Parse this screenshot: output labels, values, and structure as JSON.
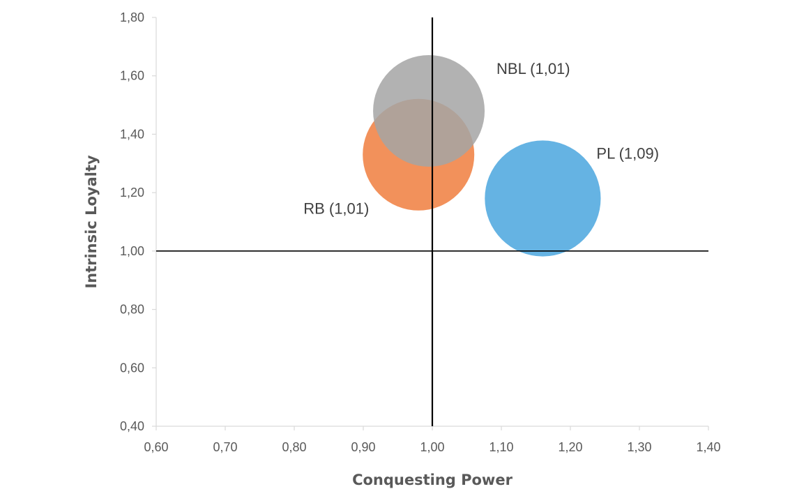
{
  "chart_data": {
    "type": "scatter",
    "variant": "bubble",
    "title": "",
    "xlabel": "Conquesting Power",
    "ylabel": "Intrinsic Loyalty",
    "xlim": [
      0.6,
      1.4
    ],
    "ylim": [
      0.4,
      1.8
    ],
    "x_ticks": [
      "0,60",
      "0,70",
      "0,80",
      "0,90",
      "1,00",
      "1,10",
      "1,20",
      "1,30",
      "1,40"
    ],
    "y_ticks": [
      "0,40",
      "0,60",
      "0,80",
      "1,00",
      "1,20",
      "1,40",
      "1,60",
      "1,80"
    ],
    "reference_lines": {
      "x": 1.0,
      "y": 1.0
    },
    "grid": false,
    "legend": "none",
    "series": [
      {
        "name": "RB",
        "label": "RB (1,01)",
        "x": 0.98,
        "y": 1.33,
        "size": 1.01,
        "color": "#f07e3e"
      },
      {
        "name": "NBL",
        "label": "NBL (1,01)",
        "x": 0.995,
        "y": 1.48,
        "size": 1.01,
        "color": "#a5a5a5"
      },
      {
        "name": "PL",
        "label": "PL (1,09)",
        "x": 1.16,
        "y": 1.18,
        "size": 1.09,
        "color": "#4aa6de"
      }
    ]
  }
}
